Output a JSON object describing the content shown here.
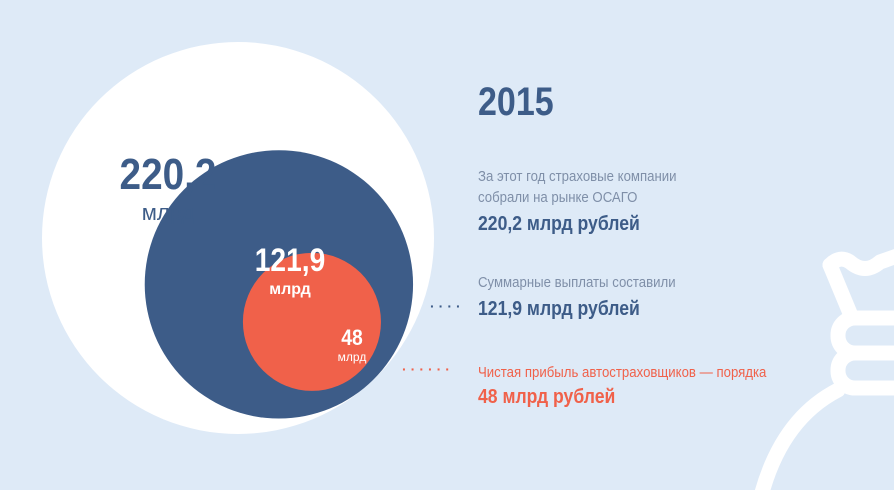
{
  "year": "2015",
  "colors": {
    "background": "#deeaf7",
    "primary": "#3d5c88",
    "accent": "#f0614a",
    "outer": "#ffffff"
  },
  "chart_data": {
    "type": "nested-bubble",
    "unit": "млрд",
    "series": [
      {
        "name": "collected",
        "value": 220.2,
        "label": "220,2",
        "color": "#ffffff"
      },
      {
        "name": "payouts",
        "value": 121.9,
        "label": "121,9",
        "color": "#3d5c88"
      },
      {
        "name": "profit",
        "value": 48,
        "label": "48",
        "color": "#f0614a"
      }
    ]
  },
  "items": [
    {
      "desc_line1": "За этот год страховые компании",
      "desc_line2": "собрали на рынке ОСАГО",
      "value": "220,2 млрд рублей"
    },
    {
      "desc_line1": "Суммарные выплаты составили",
      "value": "121,9 млрд рублей"
    },
    {
      "desc_line1": "Чистая прибыль автостраховщиков — порядка",
      "value": "48 млрд рублей"
    }
  ],
  "icon": "money-bag-icon"
}
